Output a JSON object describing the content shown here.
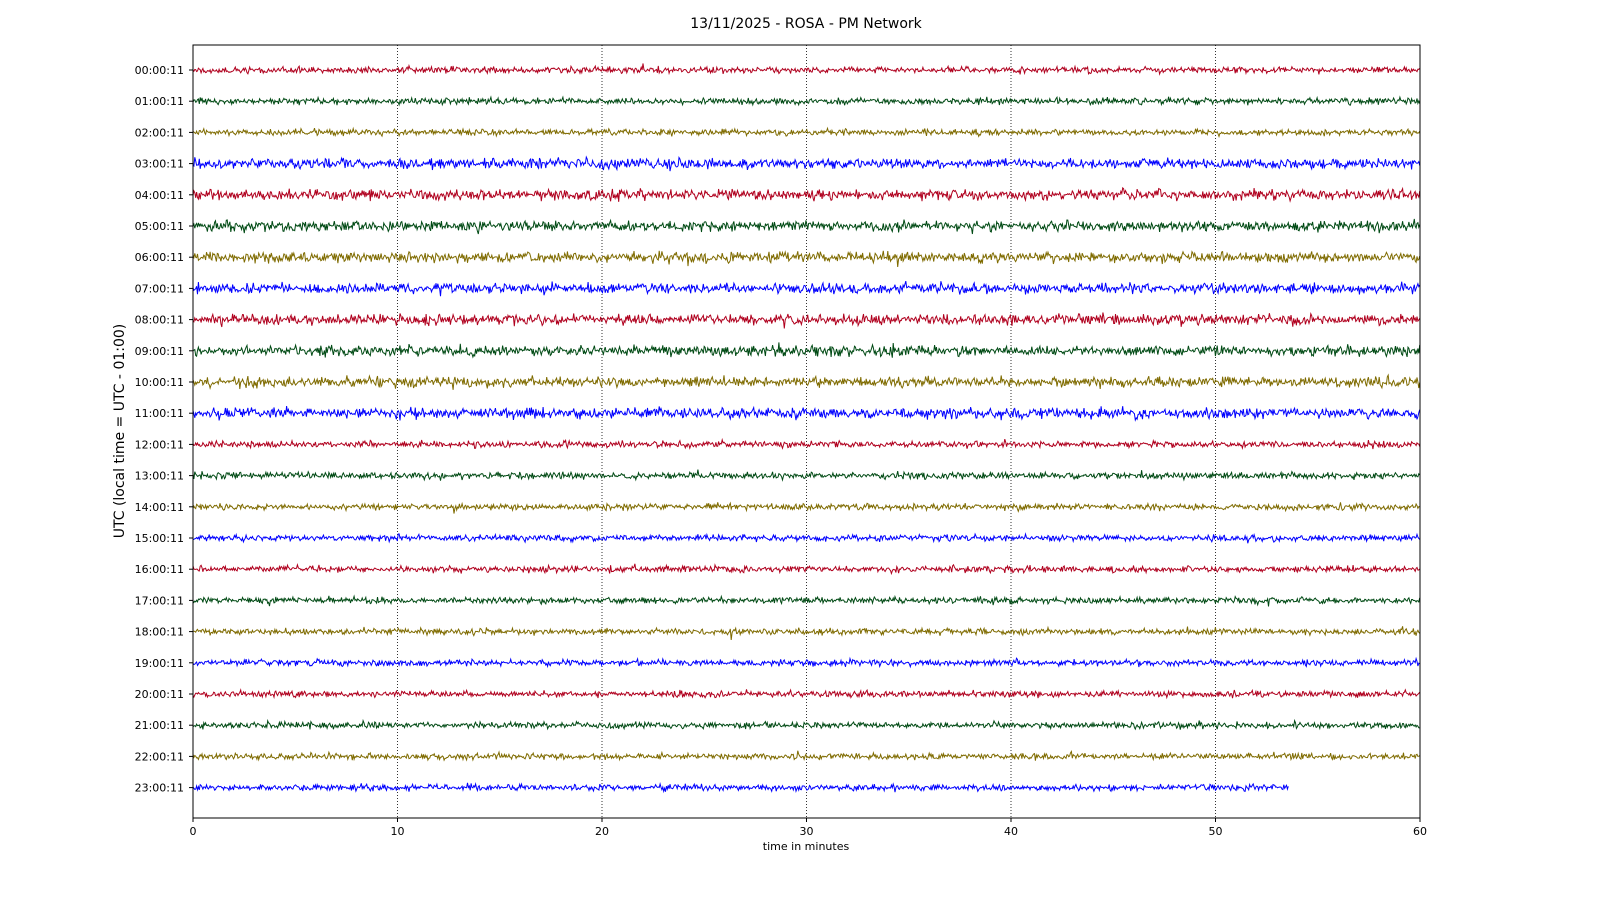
{
  "chart_data": {
    "type": "line",
    "title": "13/11/2025 - ROSA - PM Network",
    "xlabel": "time in minutes",
    "ylabel": "UTC (local time = UTC - 01:00)",
    "xlim": [
      0,
      60
    ],
    "x_ticks": [
      0,
      10,
      20,
      30,
      40,
      50,
      60
    ],
    "x_grid": true,
    "colors": [
      "#b0001e",
      "#004a14",
      "#7f6b00",
      "#0000ff"
    ],
    "rows": [
      {
        "label": "00:00:11",
        "end_minute": 60
      },
      {
        "label": "01:00:11",
        "end_minute": 60
      },
      {
        "label": "02:00:11",
        "end_minute": 60
      },
      {
        "label": "03:00:11",
        "end_minute": 60
      },
      {
        "label": "04:00:11",
        "end_minute": 60
      },
      {
        "label": "05:00:11",
        "end_minute": 60
      },
      {
        "label": "06:00:11",
        "end_minute": 60
      },
      {
        "label": "07:00:11",
        "end_minute": 60
      },
      {
        "label": "08:00:11",
        "end_minute": 60
      },
      {
        "label": "09:00:11",
        "end_minute": 60
      },
      {
        "label": "10:00:11",
        "end_minute": 60
      },
      {
        "label": "11:00:11",
        "end_minute": 60
      },
      {
        "label": "12:00:11",
        "end_minute": 60
      },
      {
        "label": "13:00:11",
        "end_minute": 60
      },
      {
        "label": "14:00:11",
        "end_minute": 60
      },
      {
        "label": "15:00:11",
        "end_minute": 60
      },
      {
        "label": "16:00:11",
        "end_minute": 60
      },
      {
        "label": "17:00:11",
        "end_minute": 60
      },
      {
        "label": "18:00:11",
        "end_minute": 60
      },
      {
        "label": "19:00:11",
        "end_minute": 60
      },
      {
        "label": "20:00:11",
        "end_minute": 60
      },
      {
        "label": "21:00:11",
        "end_minute": 60
      },
      {
        "label": "22:00:11",
        "end_minute": 60
      },
      {
        "label": "23:00:11",
        "end_minute": 53.6
      }
    ]
  }
}
